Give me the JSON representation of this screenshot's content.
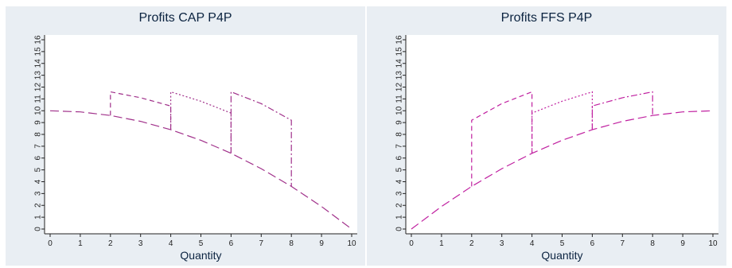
{
  "chart_data": [
    {
      "type": "line",
      "title": "Profits CAP P4P",
      "xlabel": "Quantity",
      "ylabel": "",
      "xlim": [
        0,
        10
      ],
      "ylim": [
        0,
        16
      ],
      "x_ticks": [
        "0",
        "1",
        "2",
        "3",
        "4",
        "5",
        "6",
        "7",
        "8",
        "9",
        "10"
      ],
      "y_ticks": [
        "0",
        "1",
        "2",
        "3",
        "4",
        "5",
        "6",
        "7",
        "8",
        "9",
        "10",
        "11",
        "12",
        "13",
        "14",
        "15",
        "16"
      ],
      "grid": false,
      "colors": {
        "line": "#a0308a",
        "plot_bg": "#ffffff",
        "panel_bg": "#e9eef3"
      },
      "series": [
        {
          "dash": "long-dash",
          "points": [
            [
              0,
              10
            ],
            [
              1,
              9.9
            ],
            [
              2,
              9.6
            ],
            [
              3,
              9.1
            ],
            [
              4,
              8.4
            ],
            [
              5,
              7.5
            ],
            [
              6,
              6.4
            ],
            [
              7,
              5.1
            ],
            [
              8,
              3.6
            ],
            [
              9,
              1.9
            ],
            [
              10,
              0
            ]
          ]
        },
        {
          "dash": "dash",
          "points": [
            [
              2,
              9.6
            ],
            [
              2,
              11.6
            ],
            [
              3,
              11.1
            ],
            [
              4,
              10.4
            ],
            [
              4,
              8.4
            ]
          ]
        },
        {
          "dash": "dot",
          "points": [
            [
              4,
              8.4
            ],
            [
              4,
              11.6
            ],
            [
              5,
              10.8
            ],
            [
              6,
              9.8
            ],
            [
              6,
              6.4
            ]
          ]
        },
        {
          "dash": "dash-dot",
          "points": [
            [
              6,
              6.4
            ],
            [
              6,
              11.6
            ],
            [
              7,
              10.6
            ],
            [
              8,
              9.2
            ],
            [
              8,
              3.6
            ]
          ]
        }
      ]
    },
    {
      "type": "line",
      "title": "Profits FFS P4P",
      "xlabel": "Quantity",
      "ylabel": "",
      "xlim": [
        0,
        10
      ],
      "ylim": [
        0,
        16
      ],
      "x_ticks": [
        "0",
        "1",
        "2",
        "3",
        "4",
        "5",
        "6",
        "7",
        "8",
        "9",
        "10"
      ],
      "y_ticks": [
        "0",
        "1",
        "2",
        "3",
        "4",
        "5",
        "6",
        "7",
        "8",
        "9",
        "10",
        "11",
        "12",
        "13",
        "14",
        "15",
        "16"
      ],
      "grid": false,
      "colors": {
        "line": "#c020a0",
        "plot_bg": "#ffffff",
        "panel_bg": "#e9eef3"
      },
      "series": [
        {
          "dash": "long-dash",
          "points": [
            [
              0,
              0
            ],
            [
              1,
              1.9
            ],
            [
              2,
              3.6
            ],
            [
              3,
              5.1
            ],
            [
              4,
              6.4
            ],
            [
              5,
              7.5
            ],
            [
              6,
              8.4
            ],
            [
              7,
              9.1
            ],
            [
              8,
              9.6
            ],
            [
              9,
              9.9
            ],
            [
              10,
              10
            ]
          ]
        },
        {
          "dash": "dash",
          "points": [
            [
              2,
              3.6
            ],
            [
              2,
              9.2
            ],
            [
              3,
              10.6
            ],
            [
              4,
              11.6
            ],
            [
              4,
              6.4
            ]
          ]
        },
        {
          "dash": "dot",
          "points": [
            [
              4,
              6.4
            ],
            [
              4,
              9.8
            ],
            [
              5,
              10.8
            ],
            [
              6,
              11.6
            ],
            [
              6,
              8.4
            ]
          ]
        },
        {
          "dash": "dash-dot",
          "points": [
            [
              6,
              8.4
            ],
            [
              6,
              10.4
            ],
            [
              7,
              11.1
            ],
            [
              8,
              11.6
            ],
            [
              8,
              9.6
            ]
          ]
        }
      ]
    }
  ]
}
